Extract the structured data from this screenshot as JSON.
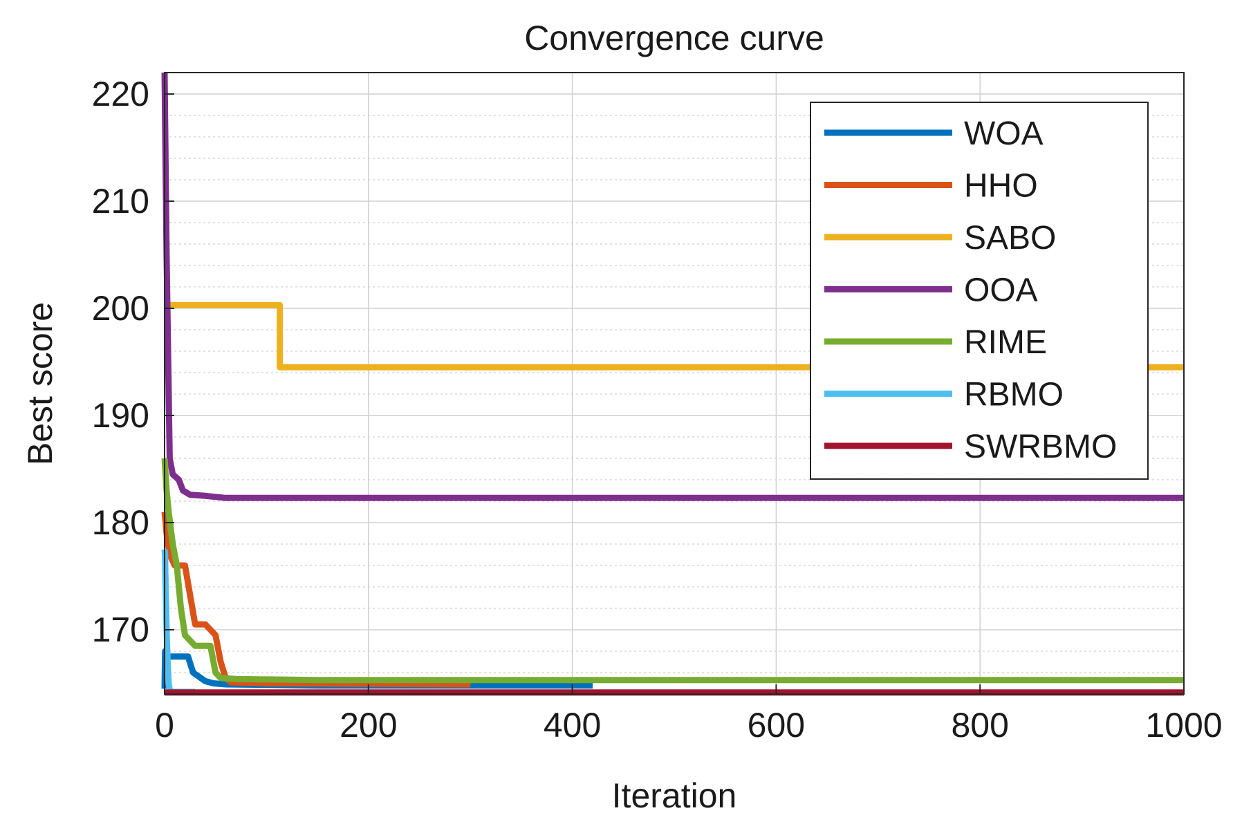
{
  "chart_data": {
    "type": "line",
    "title": "Convergence curve",
    "xlabel": "Iteration",
    "ylabel": "Best score",
    "xlim": [
      0,
      1000
    ],
    "ylim": [
      164,
      222
    ],
    "xticks": [
      0,
      200,
      400,
      600,
      800,
      1000
    ],
    "yticks": [
      170,
      180,
      190,
      200,
      210,
      220
    ],
    "grid": true,
    "legend_position": "top-right",
    "series": [
      {
        "name": "WOA",
        "color": "#0072BD",
        "x": [
          0,
          0.5,
          1,
          6,
          23,
          28,
          40,
          48,
          60,
          150,
          280,
          420
        ],
        "y": [
          164.5,
          168,
          167.5,
          167.5,
          167.5,
          166,
          165.2,
          165,
          164.9,
          164.8,
          164.8,
          164.8
        ]
      },
      {
        "name": "HHO",
        "color": "#D95319",
        "x": [
          0,
          2,
          5,
          10,
          20,
          30,
          40,
          50,
          55,
          60,
          65,
          100,
          300
        ],
        "y": [
          181,
          179,
          177,
          176,
          176,
          170.5,
          170.5,
          169.5,
          167,
          165.5,
          165.1,
          165,
          164.9
        ]
      },
      {
        "name": "SABO",
        "color": "#EDB120",
        "x": [
          0,
          113,
          113,
          1000
        ],
        "y": [
          200.3,
          200.3,
          194.5,
          194.5
        ]
      },
      {
        "name": "OOA",
        "color": "#7E2F8E",
        "x": [
          0,
          2,
          5,
          8,
          14,
          18,
          25,
          40,
          60,
          1000
        ],
        "y": [
          222,
          205,
          186,
          184.5,
          184,
          183,
          182.6,
          182.5,
          182.3,
          182.3
        ]
      },
      {
        "name": "RIME",
        "color": "#77AC30",
        "x": [
          0,
          2,
          4,
          8,
          12,
          16,
          20,
          30,
          45,
          50,
          55,
          70,
          150,
          1000
        ],
        "y": [
          186,
          183,
          181,
          178,
          176,
          172,
          169.5,
          168.5,
          168.5,
          166,
          165.5,
          165.4,
          165.3,
          165.3
        ]
      },
      {
        "name": "RBMO",
        "color": "#4DBEEE",
        "x": [
          0,
          0.5,
          1,
          2,
          3,
          4,
          5,
          6,
          8,
          15,
          30
        ],
        "y": [
          177.5,
          177,
          174,
          170,
          167,
          165,
          164.4,
          164.3,
          164.2,
          164.2,
          164.2
        ]
      },
      {
        "name": "SWRBMO",
        "color": "#A2142F",
        "x": [
          0,
          1000
        ],
        "y": [
          164.15,
          164.15
        ]
      }
    ]
  }
}
